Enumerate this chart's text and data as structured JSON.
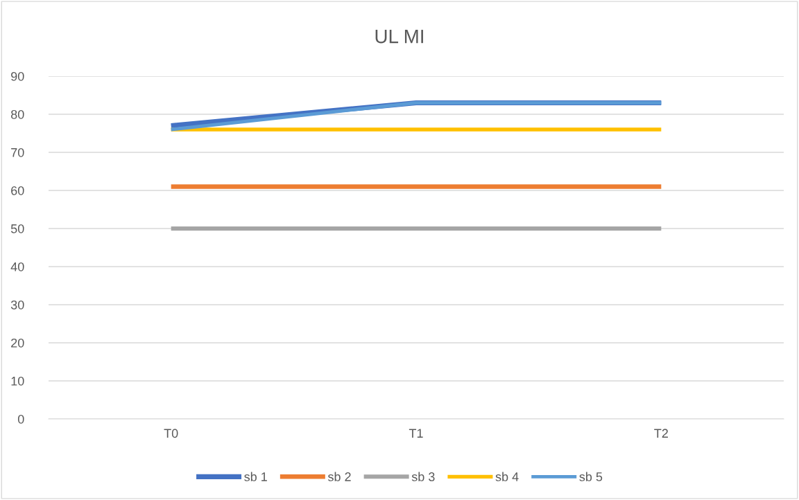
{
  "chart_data": {
    "type": "line",
    "title": "UL MI",
    "categories": [
      "T0",
      "T1",
      "T2"
    ],
    "series": [
      {
        "name": "sb 1",
        "color": "#4472c4",
        "values": [
          77,
          83,
          83
        ]
      },
      {
        "name": "sb 2",
        "color": "#ed7d31",
        "values": [
          61,
          61,
          61
        ]
      },
      {
        "name": "sb 3",
        "color": "#a5a5a5",
        "values": [
          50,
          50,
          50
        ]
      },
      {
        "name": "sb 4",
        "color": "#ffc000",
        "values": [
          76,
          76,
          76
        ]
      },
      {
        "name": "sb 5",
        "color": "#5b9bd5",
        "values": [
          76,
          83,
          83
        ]
      }
    ],
    "ylim": [
      0,
      90
    ],
    "yticks": [
      0,
      10,
      20,
      30,
      40,
      50,
      60,
      70,
      80,
      90
    ],
    "grid": "y",
    "legend": "bottom",
    "marker": "none",
    "line_style": "solid"
  }
}
